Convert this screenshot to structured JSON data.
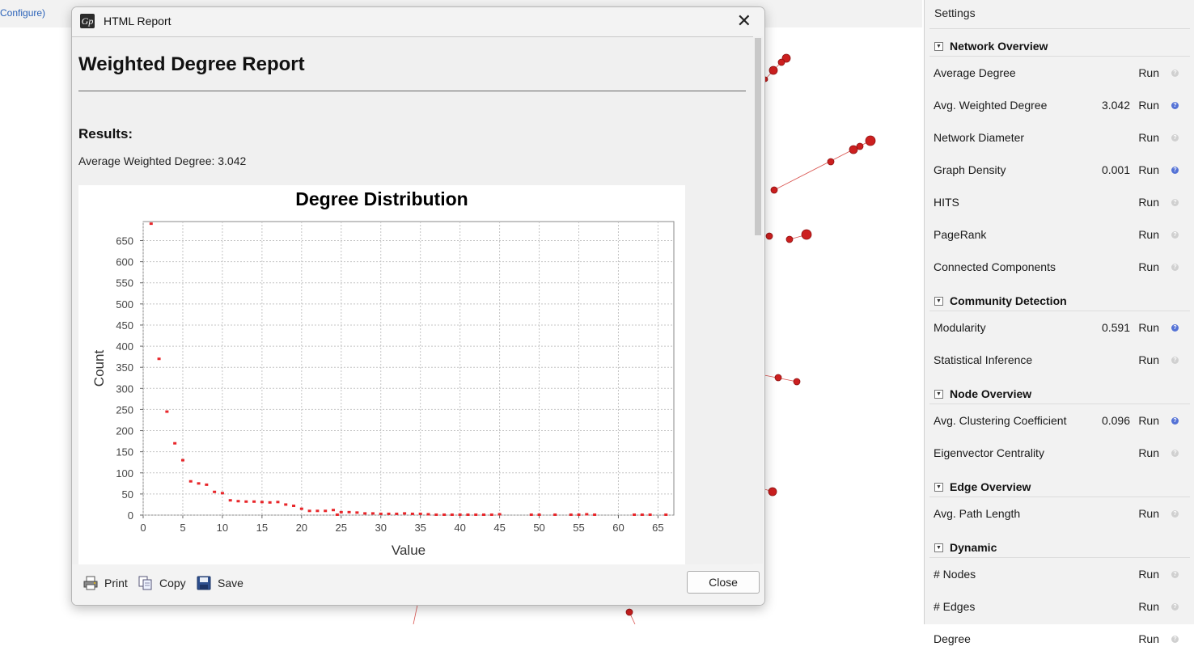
{
  "background": {
    "configure_link": "Configure)"
  },
  "settings": {
    "title": "Settings",
    "sections": [
      {
        "name": "Network Overview",
        "rows": [
          {
            "label": "Average Degree",
            "value": "",
            "run": "Run",
            "help_active": false
          },
          {
            "label": "Avg. Weighted Degree",
            "value": "3.042",
            "run": "Run",
            "help_active": true
          },
          {
            "label": "Network Diameter",
            "value": "",
            "run": "Run",
            "help_active": false
          },
          {
            "label": "Graph Density",
            "value": "0.001",
            "run": "Run",
            "help_active": true
          },
          {
            "label": "HITS",
            "value": "",
            "run": "Run",
            "help_active": false
          },
          {
            "label": "PageRank",
            "value": "",
            "run": "Run",
            "help_active": false
          },
          {
            "label": "Connected Components",
            "value": "",
            "run": "Run",
            "help_active": false
          }
        ]
      },
      {
        "name": "Community Detection",
        "rows": [
          {
            "label": "Modularity",
            "value": "0.591",
            "run": "Run",
            "help_active": true
          },
          {
            "label": "Statistical Inference",
            "value": "",
            "run": "Run",
            "help_active": false
          }
        ]
      },
      {
        "name": "Node Overview",
        "rows": [
          {
            "label": "Avg. Clustering Coefficient",
            "value": "0.096",
            "run": "Run",
            "help_active": true
          },
          {
            "label": "Eigenvector Centrality",
            "value": "",
            "run": "Run",
            "help_active": false
          }
        ]
      },
      {
        "name": "Edge Overview",
        "rows": [
          {
            "label": "Avg. Path Length",
            "value": "",
            "run": "Run",
            "help_active": false
          }
        ]
      },
      {
        "name": "Dynamic",
        "rows": [
          {
            "label": "# Nodes",
            "value": "",
            "run": "Run",
            "help_active": false
          },
          {
            "label": "# Edges",
            "value": "",
            "run": "Run",
            "help_active": false
          },
          {
            "label": "Degree",
            "value": "",
            "run": "Run",
            "help_active": false
          }
        ]
      }
    ]
  },
  "dialog": {
    "window_title": "HTML Report",
    "close_glyph": "✕",
    "app_icon_glyph": "Gp",
    "report": {
      "heading": "Weighted Degree Report",
      "results_label": "Results:",
      "avg_line": "Average Weighted Degree: 3.042"
    },
    "footer": {
      "print": "Print",
      "copy": "Copy",
      "save": "Save",
      "close": "Close"
    }
  },
  "chart_data": {
    "type": "scatter",
    "title": "Degree Distribution",
    "xlabel": "Value",
    "ylabel": "Count",
    "xlim": [
      0,
      67
    ],
    "ylim": [
      0,
      695
    ],
    "xticks": [
      0,
      5,
      10,
      15,
      20,
      25,
      30,
      35,
      40,
      45,
      50,
      55,
      60,
      65
    ],
    "yticks": [
      0,
      50,
      100,
      150,
      200,
      250,
      300,
      350,
      400,
      450,
      500,
      550,
      600,
      650
    ],
    "grid": true,
    "color": "#e8262a",
    "points": [
      [
        1,
        690
      ],
      [
        2,
        370
      ],
      [
        3,
        245
      ],
      [
        4,
        170
      ],
      [
        5,
        130
      ],
      [
        6,
        80
      ],
      [
        7,
        75
      ],
      [
        8,
        72
      ],
      [
        9,
        55
      ],
      [
        10,
        52
      ],
      [
        11,
        35
      ],
      [
        12,
        33
      ],
      [
        13,
        32
      ],
      [
        14,
        32
      ],
      [
        15,
        31
      ],
      [
        16,
        30
      ],
      [
        17,
        31
      ],
      [
        18,
        25
      ],
      [
        19,
        22
      ],
      [
        20,
        15
      ],
      [
        21,
        10
      ],
      [
        22,
        10
      ],
      [
        23,
        10
      ],
      [
        24,
        12
      ],
      [
        24.5,
        1
      ],
      [
        25,
        7
      ],
      [
        26,
        7
      ],
      [
        27,
        6
      ],
      [
        28,
        4
      ],
      [
        29,
        4
      ],
      [
        30,
        3
      ],
      [
        31,
        3
      ],
      [
        32,
        3
      ],
      [
        33,
        4
      ],
      [
        34,
        3
      ],
      [
        35,
        3
      ],
      [
        36,
        2
      ],
      [
        37,
        1
      ],
      [
        38,
        1
      ],
      [
        39,
        1
      ],
      [
        40,
        1
      ],
      [
        41,
        1
      ],
      [
        42,
        1
      ],
      [
        43,
        1
      ],
      [
        44,
        1
      ],
      [
        45,
        2
      ],
      [
        49,
        1
      ],
      [
        50,
        1
      ],
      [
        52,
        1
      ],
      [
        54,
        1
      ],
      [
        55,
        1
      ],
      [
        56,
        2
      ],
      [
        57,
        1
      ],
      [
        62,
        1
      ],
      [
        63,
        1
      ],
      [
        64,
        1
      ],
      [
        66,
        1
      ]
    ]
  }
}
